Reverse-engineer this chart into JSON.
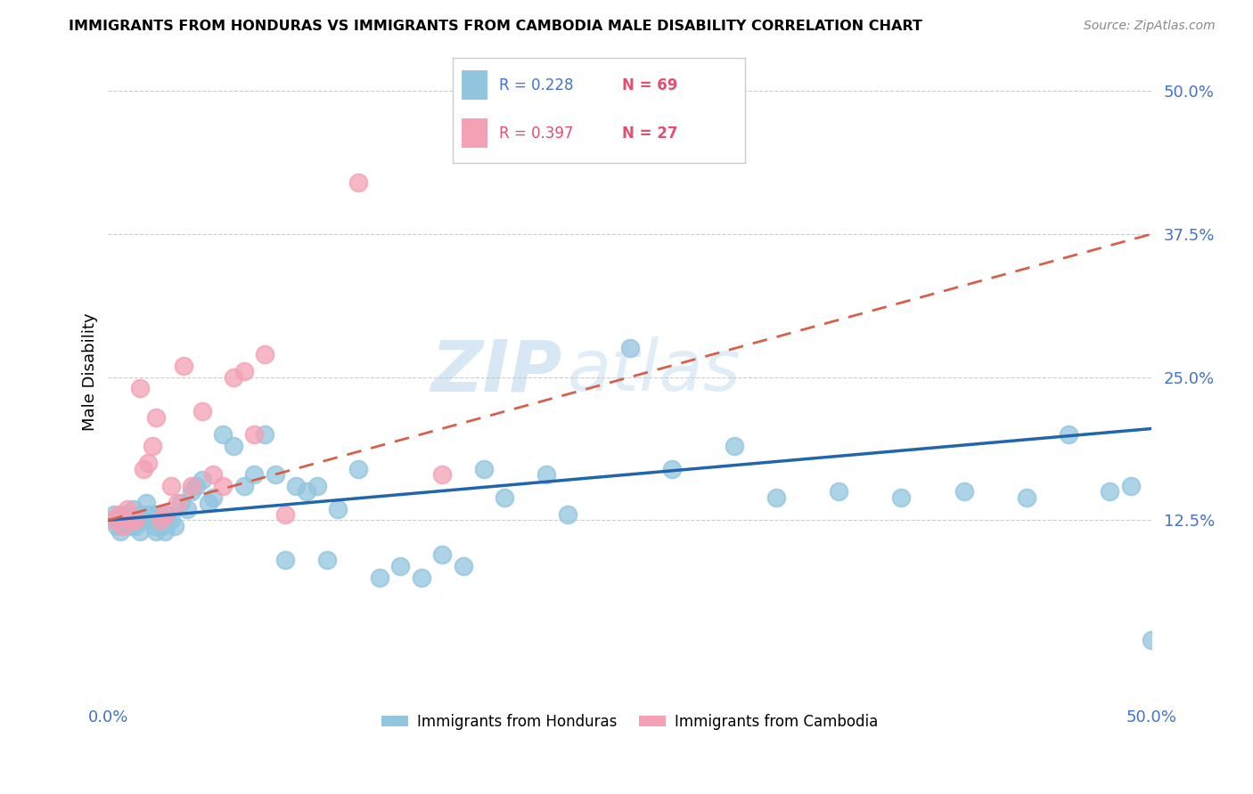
{
  "title": "IMMIGRANTS FROM HONDURAS VS IMMIGRANTS FROM CAMBODIA MALE DISABILITY CORRELATION CHART",
  "source": "Source: ZipAtlas.com",
  "ylabel": "Male Disability",
  "ytick_values": [
    0.125,
    0.25,
    0.375,
    0.5
  ],
  "ytick_labels": [
    "12.5%",
    "25.0%",
    "37.5%",
    "50.0%"
  ],
  "xlim": [
    0.0,
    0.5
  ],
  "ylim": [
    -0.03,
    0.54
  ],
  "legend_r1": "R = 0.228",
  "legend_n1": "N = 69",
  "legend_r2": "R = 0.397",
  "legend_n2": "N = 27",
  "legend_label1": "Immigrants from Honduras",
  "legend_label2": "Immigrants from Cambodia",
  "color_honduras": "#92c5de",
  "color_cambodia": "#f4a0b5",
  "color_line_honduras": "#2166ac",
  "color_line_cambodia": "#d6604d",
  "watermark_text": "ZIP",
  "watermark_text2": "atlas",
  "background_color": "#ffffff",
  "line_honduras_x0": 0.0,
  "line_honduras_y0": 0.125,
  "line_honduras_x1": 0.5,
  "line_honduras_y1": 0.205,
  "line_cambodia_x0": 0.0,
  "line_cambodia_y0": 0.125,
  "line_cambodia_x1": 0.5,
  "line_cambodia_y1": 0.375,
  "honduras_x": [
    0.003,
    0.004,
    0.005,
    0.006,
    0.007,
    0.008,
    0.009,
    0.01,
    0.011,
    0.012,
    0.013,
    0.014,
    0.015,
    0.016,
    0.017,
    0.018,
    0.019,
    0.02,
    0.021,
    0.022,
    0.023,
    0.024,
    0.025,
    0.026,
    0.027,
    0.028,
    0.03,
    0.032,
    0.035,
    0.038,
    0.04,
    0.042,
    0.045,
    0.048,
    0.05,
    0.055,
    0.06,
    0.065,
    0.07,
    0.075,
    0.08,
    0.085,
    0.09,
    0.095,
    0.1,
    0.105,
    0.11,
    0.12,
    0.13,
    0.14,
    0.15,
    0.16,
    0.17,
    0.18,
    0.19,
    0.21,
    0.22,
    0.25,
    0.27,
    0.3,
    0.32,
    0.35,
    0.38,
    0.41,
    0.44,
    0.46,
    0.48,
    0.49,
    0.5
  ],
  "honduras_y": [
    0.13,
    0.12,
    0.125,
    0.115,
    0.13,
    0.12,
    0.13,
    0.125,
    0.12,
    0.135,
    0.12,
    0.125,
    0.115,
    0.13,
    0.125,
    0.14,
    0.13,
    0.125,
    0.13,
    0.12,
    0.115,
    0.13,
    0.125,
    0.12,
    0.115,
    0.13,
    0.125,
    0.12,
    0.14,
    0.135,
    0.15,
    0.155,
    0.16,
    0.14,
    0.145,
    0.2,
    0.19,
    0.155,
    0.165,
    0.2,
    0.165,
    0.09,
    0.155,
    0.15,
    0.155,
    0.09,
    0.135,
    0.17,
    0.075,
    0.085,
    0.075,
    0.095,
    0.085,
    0.17,
    0.145,
    0.165,
    0.13,
    0.275,
    0.17,
    0.19,
    0.145,
    0.15,
    0.145,
    0.15,
    0.145,
    0.2,
    0.15,
    0.155,
    0.02
  ],
  "cambodia_x": [
    0.003,
    0.005,
    0.007,
    0.009,
    0.011,
    0.013,
    0.015,
    0.017,
    0.019,
    0.021,
    0.023,
    0.025,
    0.027,
    0.03,
    0.033,
    0.036,
    0.04,
    0.045,
    0.05,
    0.055,
    0.06,
    0.065,
    0.07,
    0.075,
    0.085,
    0.12,
    0.16
  ],
  "cambodia_y": [
    0.125,
    0.13,
    0.12,
    0.135,
    0.125,
    0.125,
    0.24,
    0.17,
    0.175,
    0.19,
    0.215,
    0.125,
    0.13,
    0.155,
    0.14,
    0.26,
    0.155,
    0.22,
    0.165,
    0.155,
    0.25,
    0.255,
    0.2,
    0.27,
    0.13,
    0.42,
    0.165
  ]
}
